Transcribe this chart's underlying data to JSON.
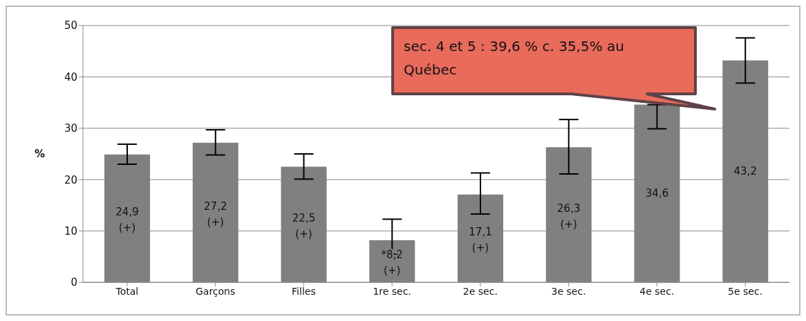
{
  "chart_data": {
    "type": "bar",
    "ylabel": "%",
    "categories": [
      "Total",
      "Garçons",
      "Filles",
      "1re sec.",
      "2e sec.",
      "3e sec.",
      "4e sec.",
      "5e sec."
    ],
    "values": [
      24.9,
      27.2,
      22.5,
      8.2,
      17.1,
      26.3,
      34.6,
      43.2
    ],
    "color": "#808080",
    "errors": [
      [
        23.0,
        26.9
      ],
      [
        24.8,
        29.7
      ],
      [
        20.1,
        25.0
      ],
      [
        5.5,
        12.3
      ],
      [
        13.3,
        21.3
      ],
      [
        21.1,
        31.7
      ],
      [
        29.9,
        34.6
      ],
      [
        38.8,
        47.6
      ]
    ],
    "value_labels": [
      "24,9\n(+)",
      "27,2\n(+)",
      "22,5\n(+)",
      "*8,2\n(+)",
      "17,1\n(+)",
      "26,3\n(+)",
      "34,6",
      "43,2"
    ],
    "annotations": [
      "sec. 4 et 5 : 39,6 % c. 35,5% au Québec"
    ],
    "ylim": [
      0,
      50
    ],
    "yticks": [
      0,
      10,
      20,
      30,
      40,
      50
    ],
    "grid": "y"
  }
}
